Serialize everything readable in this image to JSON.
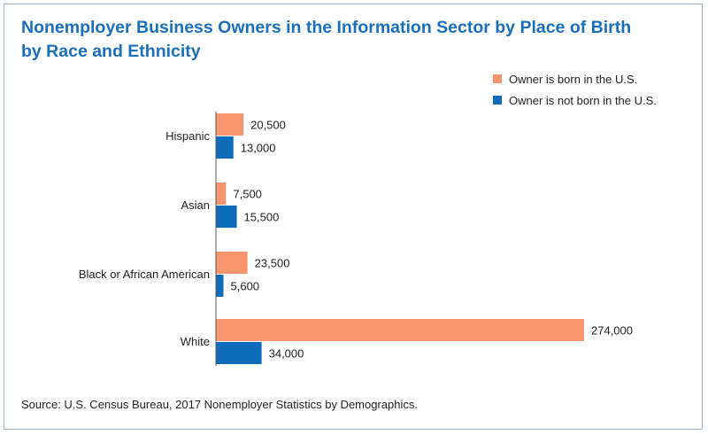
{
  "title": "Nonemployer Business Owners in the Information Sector by Place of Birth by Race and Ethnicity",
  "source": "Source: U.S. Census Bureau, 2017 Nonemployer Statistics by Demographics.",
  "colors": {
    "title": "#1a6fba",
    "born_us": "#f7956d",
    "not_born_us": "#0d6bb8",
    "axis": "#555555",
    "frame": "#9fb3c8"
  },
  "chart_data": {
    "type": "bar",
    "orientation": "horizontal",
    "categories": [
      "Hispanic",
      "Asian",
      "Black or African American",
      "White"
    ],
    "series": [
      {
        "name": "Owner is born in the U.S.",
        "values": [
          20500,
          7500,
          23500,
          274000
        ],
        "value_labels": [
          "20,500",
          "7,500",
          "23,500",
          "274,000"
        ]
      },
      {
        "name": "Owner is not born in the U.S.",
        "values": [
          13000,
          15500,
          5600,
          34000
        ],
        "value_labels": [
          "13,000",
          "15,500",
          "5,600",
          "34,000"
        ]
      }
    ],
    "xlim": [
      0,
      274000
    ],
    "grid": false,
    "legend_position": "top-right"
  }
}
